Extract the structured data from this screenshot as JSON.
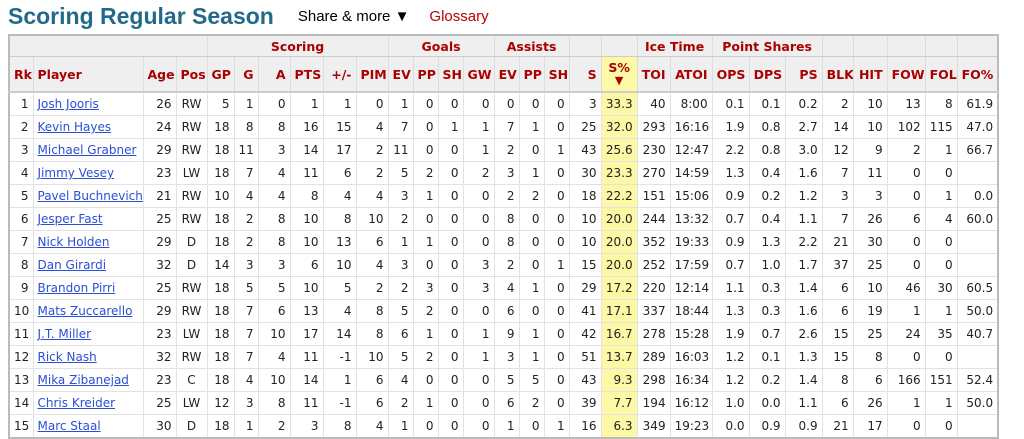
{
  "header": {
    "title": "Scoring Regular Season",
    "share_label": "Share & more ▼",
    "glossary_label": "Glossary"
  },
  "colors": {
    "title": "#23698a",
    "header_text": "#aa0000",
    "link": "#2a4fd6",
    "sorted_column": "#fcf8a5"
  },
  "table": {
    "groups": [
      {
        "label": "",
        "span": 4
      },
      {
        "label": "Scoring",
        "span": 6
      },
      {
        "label": "Goals",
        "span": 4
      },
      {
        "label": "Assists",
        "span": 3
      },
      {
        "label": "",
        "span": 1
      },
      {
        "label": "",
        "span": 1
      },
      {
        "label": "Ice Time",
        "span": 2
      },
      {
        "label": "Point Shares",
        "span": 3
      },
      {
        "label": "",
        "span": 1
      },
      {
        "label": "",
        "span": 1
      },
      {
        "label": "",
        "span": 1
      },
      {
        "label": "",
        "span": 1
      },
      {
        "label": "",
        "span": 1
      }
    ],
    "columns": [
      "Rk",
      "Player",
      "Age",
      "Pos",
      "GP",
      "G",
      "A",
      "PTS",
      "+/-",
      "PIM",
      "EV",
      "PP",
      "SH",
      "GW",
      "EV",
      "PP",
      "SH",
      "S",
      "S%",
      "TOI",
      "ATOI",
      "OPS",
      "DPS",
      "PS",
      "BLK",
      "HIT",
      "FOW",
      "FOL",
      "FO%"
    ],
    "sorted_column": "S%",
    "sort_icon": "triangle-down-icon",
    "rows": [
      [
        "1",
        "Josh Jooris",
        "26",
        "RW",
        "5",
        "1",
        "0",
        "1",
        "1",
        "0",
        "1",
        "0",
        "0",
        "0",
        "0",
        "0",
        "0",
        "3",
        "33.3",
        "40",
        "8:00",
        "0.1",
        "0.1",
        "0.2",
        "2",
        "10",
        "13",
        "8",
        "61.9"
      ],
      [
        "2",
        "Kevin Hayes",
        "24",
        "RW",
        "18",
        "8",
        "8",
        "16",
        "15",
        "4",
        "7",
        "0",
        "1",
        "1",
        "7",
        "1",
        "0",
        "25",
        "32.0",
        "293",
        "16:16",
        "1.9",
        "0.8",
        "2.7",
        "14",
        "10",
        "102",
        "115",
        "47.0"
      ],
      [
        "3",
        "Michael Grabner",
        "29",
        "RW",
        "18",
        "11",
        "3",
        "14",
        "17",
        "2",
        "11",
        "0",
        "0",
        "1",
        "2",
        "0",
        "1",
        "43",
        "25.6",
        "230",
        "12:47",
        "2.2",
        "0.8",
        "3.0",
        "12",
        "9",
        "2",
        "1",
        "66.7"
      ],
      [
        "4",
        "Jimmy Vesey",
        "23",
        "LW",
        "18",
        "7",
        "4",
        "11",
        "6",
        "2",
        "5",
        "2",
        "0",
        "2",
        "3",
        "1",
        "0",
        "30",
        "23.3",
        "270",
        "14:59",
        "1.3",
        "0.4",
        "1.6",
        "7",
        "11",
        "0",
        "0",
        ""
      ],
      [
        "5",
        "Pavel Buchnevich",
        "21",
        "RW",
        "10",
        "4",
        "4",
        "8",
        "4",
        "4",
        "3",
        "1",
        "0",
        "0",
        "2",
        "2",
        "0",
        "18",
        "22.2",
        "151",
        "15:06",
        "0.9",
        "0.2",
        "1.2",
        "3",
        "3",
        "0",
        "1",
        "0.0"
      ],
      [
        "6",
        "Jesper Fast",
        "25",
        "RW",
        "18",
        "2",
        "8",
        "10",
        "8",
        "10",
        "2",
        "0",
        "0",
        "0",
        "8",
        "0",
        "0",
        "10",
        "20.0",
        "244",
        "13:32",
        "0.7",
        "0.4",
        "1.1",
        "7",
        "26",
        "6",
        "4",
        "60.0"
      ],
      [
        "7",
        "Nick Holden",
        "29",
        "D",
        "18",
        "2",
        "8",
        "10",
        "13",
        "6",
        "1",
        "1",
        "0",
        "0",
        "8",
        "0",
        "0",
        "10",
        "20.0",
        "352",
        "19:33",
        "0.9",
        "1.3",
        "2.2",
        "21",
        "30",
        "0",
        "0",
        ""
      ],
      [
        "8",
        "Dan Girardi",
        "32",
        "D",
        "14",
        "3",
        "3",
        "6",
        "10",
        "4",
        "3",
        "0",
        "0",
        "3",
        "2",
        "0",
        "1",
        "15",
        "20.0",
        "252",
        "17:59",
        "0.7",
        "1.0",
        "1.7",
        "37",
        "25",
        "0",
        "0",
        ""
      ],
      [
        "9",
        "Brandon Pirri",
        "25",
        "RW",
        "18",
        "5",
        "5",
        "10",
        "5",
        "2",
        "2",
        "3",
        "0",
        "3",
        "4",
        "1",
        "0",
        "29",
        "17.2",
        "220",
        "12:14",
        "1.1",
        "0.3",
        "1.4",
        "6",
        "10",
        "46",
        "30",
        "60.5"
      ],
      [
        "10",
        "Mats Zuccarello",
        "29",
        "RW",
        "18",
        "7",
        "6",
        "13",
        "4",
        "8",
        "5",
        "2",
        "0",
        "0",
        "6",
        "0",
        "0",
        "41",
        "17.1",
        "337",
        "18:44",
        "1.3",
        "0.3",
        "1.6",
        "6",
        "19",
        "1",
        "1",
        "50.0"
      ],
      [
        "11",
        "J.T. Miller",
        "23",
        "LW",
        "18",
        "7",
        "10",
        "17",
        "14",
        "8",
        "6",
        "1",
        "0",
        "1",
        "9",
        "1",
        "0",
        "42",
        "16.7",
        "278",
        "15:28",
        "1.9",
        "0.7",
        "2.6",
        "15",
        "25",
        "24",
        "35",
        "40.7"
      ],
      [
        "12",
        "Rick Nash",
        "32",
        "RW",
        "18",
        "7",
        "4",
        "11",
        "-1",
        "10",
        "5",
        "2",
        "0",
        "1",
        "3",
        "1",
        "0",
        "51",
        "13.7",
        "289",
        "16:03",
        "1.2",
        "0.1",
        "1.3",
        "15",
        "8",
        "0",
        "0",
        ""
      ],
      [
        "13",
        "Mika Zibanejad",
        "23",
        "C",
        "18",
        "4",
        "10",
        "14",
        "1",
        "6",
        "4",
        "0",
        "0",
        "0",
        "5",
        "5",
        "0",
        "43",
        "9.3",
        "298",
        "16:34",
        "1.2",
        "0.2",
        "1.4",
        "8",
        "6",
        "166",
        "151",
        "52.4"
      ],
      [
        "14",
        "Chris Kreider",
        "25",
        "LW",
        "12",
        "3",
        "8",
        "11",
        "-1",
        "6",
        "2",
        "1",
        "0",
        "0",
        "6",
        "2",
        "0",
        "39",
        "7.7",
        "194",
        "16:12",
        "1.0",
        "0.0",
        "1.1",
        "6",
        "26",
        "1",
        "1",
        "50.0"
      ],
      [
        "15",
        "Marc Staal",
        "30",
        "D",
        "18",
        "1",
        "2",
        "3",
        "8",
        "4",
        "1",
        "0",
        "0",
        "0",
        "1",
        "0",
        "1",
        "16",
        "6.3",
        "349",
        "19:23",
        "0.0",
        "0.9",
        "0.9",
        "21",
        "17",
        "0",
        "0",
        ""
      ]
    ]
  }
}
